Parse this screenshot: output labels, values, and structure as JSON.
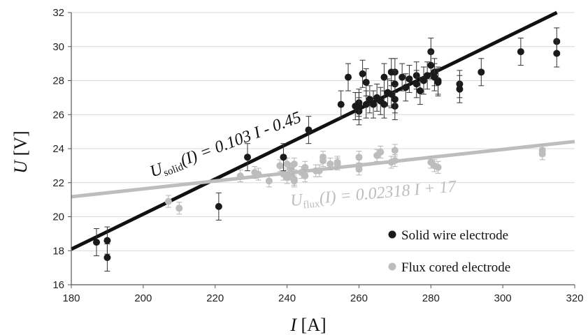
{
  "chart_data": {
    "type": "scatter",
    "xlabel_main": "I",
    "xlabel_unit": " [A]",
    "ylabel_main": "U",
    "ylabel_unit": " [V]",
    "xlim": [
      180,
      320
    ],
    "ylim": [
      16,
      32
    ],
    "x_ticks": [
      180,
      200,
      220,
      240,
      260,
      280,
      300,
      320
    ],
    "y_ticks": [
      16,
      18,
      20,
      22,
      24,
      26,
      28,
      30,
      32
    ],
    "grid": "horizontal",
    "legend_position": "bottom-right",
    "series": [
      {
        "name": "Solid wire electrode",
        "color": "#1a1a1a",
        "error": 0.8,
        "points": [
          [
            187,
            18.5
          ],
          [
            190,
            18.6
          ],
          [
            190,
            17.6
          ],
          [
            221,
            20.6
          ],
          [
            229,
            23.5
          ],
          [
            239,
            23.5
          ],
          [
            246,
            25.1
          ],
          [
            255,
            26.6
          ],
          [
            257,
            28.2
          ],
          [
            259,
            26.5
          ],
          [
            260,
            26.7
          ],
          [
            260,
            26.2
          ],
          [
            260,
            26.5
          ],
          [
            261,
            28.4
          ],
          [
            262,
            27.9
          ],
          [
            262,
            26.6
          ],
          [
            263,
            26.9
          ],
          [
            264,
            26.6
          ],
          [
            265,
            27.0
          ],
          [
            266,
            26.8
          ],
          [
            267,
            28.2
          ],
          [
            267,
            26.6
          ],
          [
            268,
            27.3
          ],
          [
            269,
            28.5
          ],
          [
            269,
            27.2
          ],
          [
            270,
            28.5
          ],
          [
            270,
            27.8
          ],
          [
            270,
            26.5
          ],
          [
            270,
            26.9
          ],
          [
            272,
            28.2
          ],
          [
            273,
            27.6
          ],
          [
            274,
            28.1
          ],
          [
            276,
            28.3
          ],
          [
            276,
            27.8
          ],
          [
            277,
            27.4
          ],
          [
            278,
            28.0
          ],
          [
            279,
            28.3
          ],
          [
            280,
            29.7
          ],
          [
            280,
            28.9
          ],
          [
            281,
            28.5
          ],
          [
            281,
            28.2
          ],
          [
            282,
            28.0
          ],
          [
            282,
            27.9
          ],
          [
            288,
            27.8
          ],
          [
            288,
            27.5
          ],
          [
            294,
            28.5
          ],
          [
            305,
            29.7
          ],
          [
            315,
            30.3
          ],
          [
            315,
            29.6
          ]
        ]
      },
      {
        "name": "Flux cored electrode",
        "color": "#bdbdbd",
        "error": 0.35,
        "points": [
          [
            207,
            20.9
          ],
          [
            210,
            20.5
          ],
          [
            227,
            22.4
          ],
          [
            231,
            22.6
          ],
          [
            232,
            22.5
          ],
          [
            235,
            22.1
          ],
          [
            238,
            23.0
          ],
          [
            239,
            22.5
          ],
          [
            240,
            23.1
          ],
          [
            240,
            22.3
          ],
          [
            241,
            22.8
          ],
          [
            241,
            22.5
          ],
          [
            242,
            22.2
          ],
          [
            242,
            22.1
          ],
          [
            242,
            23.1
          ],
          [
            244,
            22.6
          ],
          [
            245,
            22.9
          ],
          [
            245,
            22.4
          ],
          [
            248,
            22.7
          ],
          [
            249,
            22.7
          ],
          [
            250,
            23.3
          ],
          [
            250,
            23.5
          ],
          [
            252,
            23.1
          ],
          [
            254,
            23.1
          ],
          [
            254,
            23.2
          ],
          [
            260,
            23.5
          ],
          [
            260,
            22.8
          ],
          [
            260,
            23.0
          ],
          [
            265,
            23.6
          ],
          [
            266,
            23.8
          ],
          [
            269,
            23.2
          ],
          [
            270,
            23.9
          ],
          [
            270,
            23.3
          ],
          [
            280,
            23.2
          ],
          [
            281,
            23.0
          ],
          [
            282,
            22.9
          ],
          [
            311,
            23.9
          ],
          [
            311,
            23.7
          ]
        ]
      }
    ],
    "fits": [
      {
        "series": "Solid wire electrode",
        "color": "#111111",
        "slope": 0.103,
        "intercept": -0.45,
        "label_main": "U",
        "label_sub": "solid",
        "label_rest": "(I) = 0.103 I - 0.45"
      },
      {
        "series": "Flux cored electrode",
        "color": "#bdbdbd",
        "slope": 0.02318,
        "intercept": 17,
        "label_main": "U",
        "label_sub": "flux",
        "label_rest": "(I) = 0.02318 I + 17"
      }
    ]
  }
}
